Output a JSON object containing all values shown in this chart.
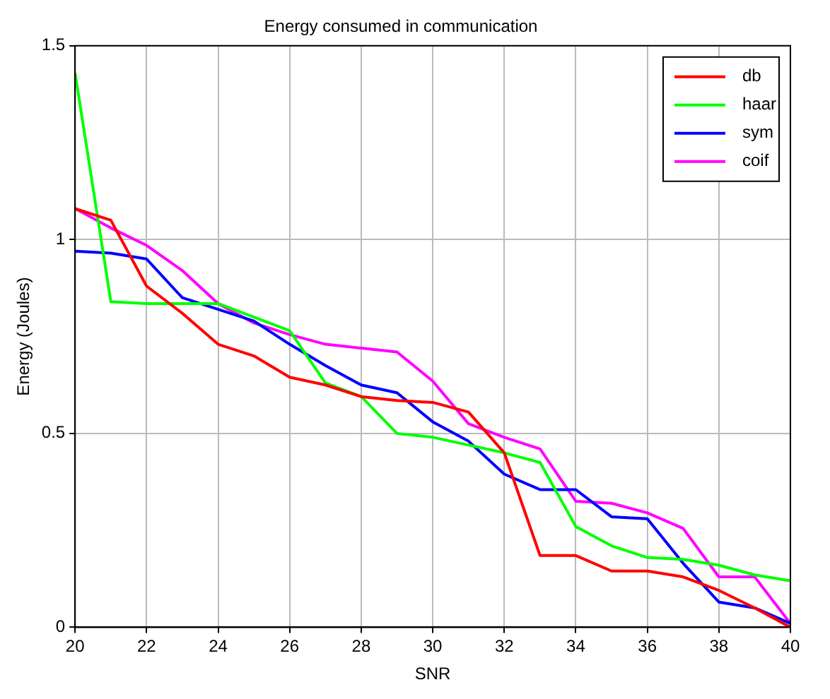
{
  "chart_data": {
    "type": "line",
    "title": "Energy consumed in communication",
    "xlabel": "SNR",
    "ylabel": "Energy (Joules)",
    "x": [
      20,
      21,
      22,
      23,
      24,
      25,
      26,
      27,
      28,
      29,
      30,
      31,
      32,
      33,
      34,
      35,
      36,
      37,
      38,
      39,
      40
    ],
    "series": [
      {
        "name": "db",
        "color": "#ff0000",
        "values": [
          1.08,
          1.05,
          0.88,
          0.81,
          0.73,
          0.7,
          0.645,
          0.625,
          0.595,
          0.585,
          0.58,
          0.555,
          0.45,
          0.185,
          0.185,
          0.145,
          0.145,
          0.13,
          0.095,
          0.05,
          0.0
        ]
      },
      {
        "name": "haar",
        "color": "#00ff00",
        "values": [
          1.43,
          0.84,
          0.835,
          0.835,
          0.835,
          0.8,
          0.765,
          0.63,
          0.595,
          0.5,
          0.49,
          0.47,
          0.45,
          0.425,
          0.26,
          0.21,
          0.18,
          0.175,
          0.16,
          0.135,
          0.12
        ]
      },
      {
        "name": "sym",
        "color": "#0000ff",
        "values": [
          0.97,
          0.965,
          0.95,
          0.85,
          0.82,
          0.79,
          0.73,
          0.675,
          0.625,
          0.605,
          0.53,
          0.48,
          0.395,
          0.355,
          0.355,
          0.285,
          0.28,
          0.165,
          0.065,
          0.05,
          0.01
        ]
      },
      {
        "name": "coif",
        "color": "#ff00ff",
        "values": [
          1.08,
          1.03,
          0.985,
          0.92,
          0.835,
          0.785,
          0.755,
          0.73,
          0.72,
          0.71,
          0.635,
          0.525,
          0.49,
          0.46,
          0.325,
          0.32,
          0.295,
          0.255,
          0.13,
          0.13,
          0.01
        ]
      }
    ],
    "xlim": [
      20,
      40
    ],
    "xticks": [
      20,
      22,
      24,
      26,
      28,
      30,
      32,
      34,
      36,
      38,
      40
    ],
    "ylim": [
      0,
      1.5
    ],
    "yticks": [
      0,
      0.5,
      1,
      1.5
    ],
    "grid": true,
    "legend": "top right",
    "marker": "none",
    "line_style": "solid"
  }
}
